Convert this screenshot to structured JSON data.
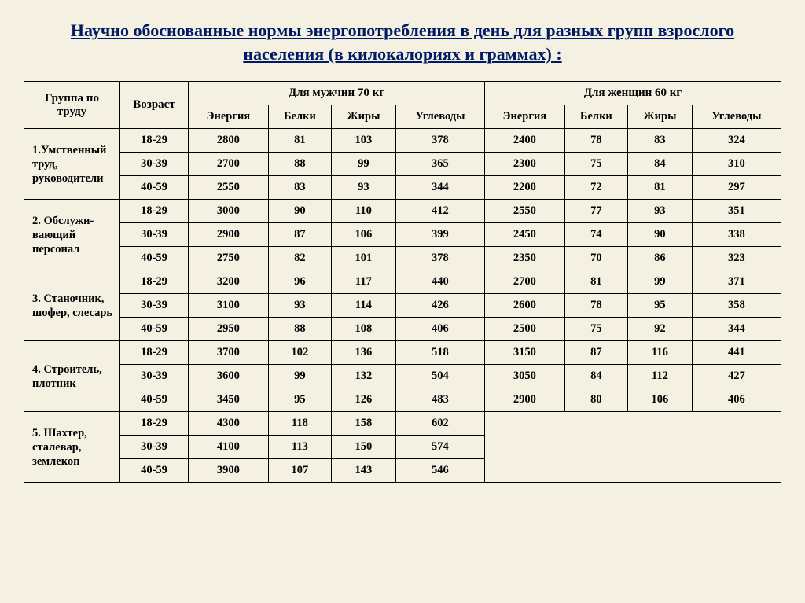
{
  "title": "Научно обоснованные нормы энергопотребления в день для разных групп взрослого населения (в килокалориях и граммах) :",
  "headers": {
    "group": "Группа по труду",
    "age": "Возраст",
    "men": "Для мужчин 70 кг",
    "women": "Для женщин 60 кг",
    "energy": "Энергия",
    "protein": "Белки",
    "fat": "Жиры",
    "carbs": "Углеводы"
  },
  "groups": [
    {
      "label": "1.Умственн­ый труд, руководите­ли",
      "rows": [
        {
          "age": "18-29",
          "m": [
            "2800",
            "81",
            "103",
            "378"
          ],
          "w": [
            "2400",
            "78",
            "83",
            "324"
          ]
        },
        {
          "age": "30-39",
          "m": [
            "2700",
            "88",
            "99",
            "365"
          ],
          "w": [
            "2300",
            "75",
            "84",
            "310"
          ]
        },
        {
          "age": "40-59",
          "m": [
            "2550",
            "83",
            "93",
            "344"
          ],
          "w": [
            "2200",
            "72",
            "81",
            "297"
          ]
        }
      ]
    },
    {
      "label": "2. Обслужи­вающий персонал",
      "rows": [
        {
          "age": "18-29",
          "m": [
            "3000",
            "90",
            "110",
            "412"
          ],
          "w": [
            "2550",
            "77",
            "93",
            "351"
          ]
        },
        {
          "age": "30-39",
          "m": [
            "2900",
            "87",
            "106",
            "399"
          ],
          "w": [
            "2450",
            "74",
            "90",
            "338"
          ]
        },
        {
          "age": "40-59",
          "m": [
            "2750",
            "82",
            "101",
            "378"
          ],
          "w": [
            "2350",
            "70",
            "86",
            "323"
          ]
        }
      ]
    },
    {
      "label": "3. Станоч­ник, шофер, слесарь",
      "rows": [
        {
          "age": "18-29",
          "m": [
            "3200",
            "96",
            "117",
            "440"
          ],
          "w": [
            "2700",
            "81",
            "99",
            "371"
          ]
        },
        {
          "age": "30-39",
          "m": [
            "3100",
            "93",
            "114",
            "426"
          ],
          "w": [
            "2600",
            "78",
            "95",
            "358"
          ]
        },
        {
          "age": "40-59",
          "m": [
            "2950",
            "88",
            "108",
            "406"
          ],
          "w": [
            "2500",
            "75",
            "92",
            "344"
          ]
        }
      ]
    },
    {
      "label": "4. Строи­тель, плотник",
      "rows": [
        {
          "age": "18-29",
          "m": [
            "3700",
            "102",
            "136",
            "518"
          ],
          "w": [
            "3150",
            "87",
            "116",
            "441"
          ]
        },
        {
          "age": "30-39",
          "m": [
            "3600",
            "99",
            "132",
            "504"
          ],
          "w": [
            "3050",
            "84",
            "112",
            "427"
          ]
        },
        {
          "age": "40-59",
          "m": [
            "3450",
            "95",
            "126",
            "483"
          ],
          "w": [
            "2900",
            "80",
            "106",
            "406"
          ]
        }
      ]
    },
    {
      "label": "5. Шахтер, сталевар, землекоп",
      "rows": [
        {
          "age": "18-29",
          "m": [
            "4300",
            "118",
            "158",
            "602"
          ],
          "w": null
        },
        {
          "age": "30-39",
          "m": [
            "4100",
            "113",
            "150",
            "574"
          ],
          "w": null
        },
        {
          "age": "40-59",
          "m": [
            "3900",
            "107",
            "143",
            "546"
          ],
          "w": null
        }
      ]
    }
  ],
  "styling": {
    "background_color": "#f4f0e2",
    "title_color": "#001a66",
    "border_color": "#000000",
    "font_family": "Times New Roman",
    "title_fontsize": 22,
    "cell_fontsize": 14.5,
    "cell_fontweight": "bold"
  }
}
